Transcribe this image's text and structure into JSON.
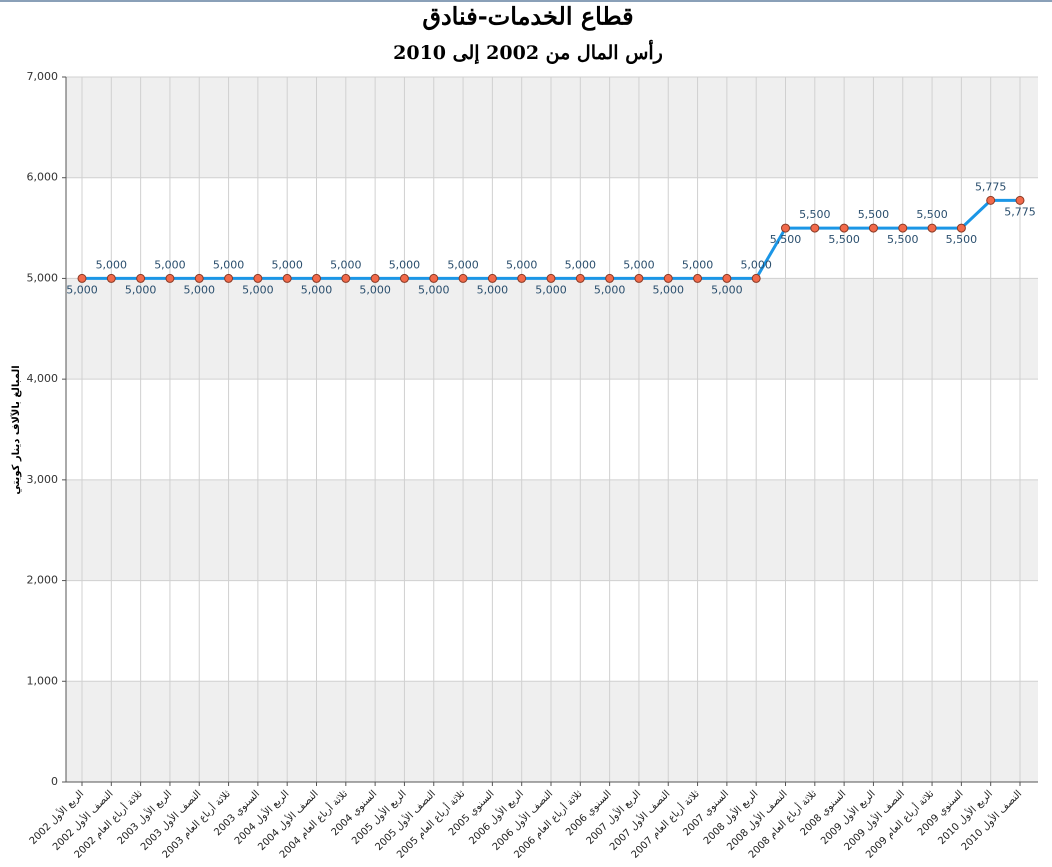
{
  "chart_data": {
    "type": "line",
    "title": "قطاع الخدمات-فنادق",
    "subtitle": "رأس المال من 2002 إلى 2010",
    "y_label": "المبالغ بالآلاف دينار كويتي",
    "categories": [
      "الربع الأول 2002",
      "النصف الأول 2002",
      "ثلاثة أرباع العام 2002",
      "الربع الأول 2003",
      "النصف الأول 2003",
      "ثلاثة أرباع العام 2003",
      "السنوي 2003",
      "الربع الأول 2004",
      "النصف الأول 2004",
      "ثلاثة أرباع العام 2004",
      "السنوي 2004",
      "الربع الأول 2005",
      "النصف الأول 2005",
      "ثلاثة أرباع العام 2005",
      "السنوي 2005",
      "الربع الأول 2006",
      "النصف الأول 2006",
      "ثلاثة أرباع العام 2006",
      "السنوي 2006",
      "الربع الأول 2007",
      "النصف الأول 2007",
      "ثلاثة أرباع العام 2007",
      "السنوي 2007",
      "الربع الأول 2008",
      "النصف الأول 2008",
      "ثلاثة أرباع العام 2008",
      "السنوي 2008",
      "الربع الأول 2009",
      "النصف الأول 2009",
      "ثلاثة أرباع العام 2009",
      "السنوي 2009",
      "الربع الأول 2010",
      "النصف الأول 2010"
    ],
    "values": [
      5000,
      5000,
      5000,
      5000,
      5000,
      5000,
      5000,
      5000,
      5000,
      5000,
      5000,
      5000,
      5000,
      5000,
      5000,
      5000,
      5000,
      5000,
      5000,
      5000,
      5000,
      5000,
      5000,
      5000,
      5500,
      5500,
      5500,
      5500,
      5500,
      5500,
      5500,
      5775,
      5775
    ],
    "value_labels": [
      "5,000",
      "5,000",
      "5,000",
      "5,000",
      "5,000",
      "5,000",
      "5,000",
      "5,000",
      "5,000",
      "5,000",
      "5,000",
      "5,000",
      "5,000",
      "5,000",
      "5,000",
      "5,000",
      "5,000",
      "5,000",
      "5,000",
      "5,000",
      "5,000",
      "5,000",
      "5,000",
      "5,000",
      "5,500",
      "5,500",
      "5,500",
      "5,500",
      "5,500",
      "5,500",
      "5,500",
      "5,775",
      "5,775"
    ],
    "color": "#1b96e6",
    "marker_color": "#f26a4b",
    "ylim": [
      0,
      7000
    ],
    "yticks": [
      0,
      {
        "value": 1000,
        "label": "1,000"
      },
      {
        "value": 2000,
        "label": "2,000"
      },
      {
        "value": 3000,
        "label": "3,000"
      },
      {
        "value": 4000,
        "label": "4,000"
      },
      {
        "value": 5000,
        "label": "5,000"
      },
      {
        "value": 6000,
        "label": "6,000"
      },
      {
        "value": 7000,
        "label": "7,000"
      }
    ],
    "grid": true
  }
}
